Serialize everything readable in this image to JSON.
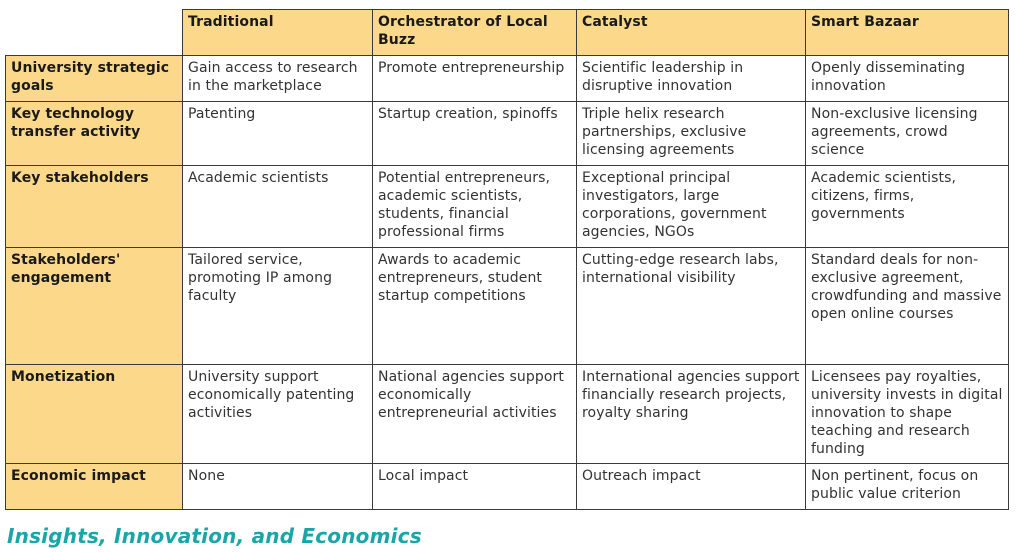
{
  "table": {
    "columns": [
      "Traditional",
      "Orchestrator of Local Buzz",
      "Catalyst",
      "Smart Bazaar"
    ],
    "rows": [
      {
        "label": "University strategic goals",
        "cells": [
          "Gain access to research in the marketplace",
          "Promote entrepreneurship",
          "Scientific leadership in disruptive innovation",
          "Openly disseminating innovation"
        ]
      },
      {
        "label": "Key technology transfer activity",
        "cells": [
          "Patenting",
          "Startup creation, spinoffs",
          "Triple helix research partnerships, exclusive licensing agreements",
          "Non-exclusive licensing agreements, crowd science"
        ]
      },
      {
        "label": "Key stakeholders",
        "cells": [
          "Academic scientists",
          "Potential entrepreneurs, academic scientists, students, financial professional firms",
          "Exceptional principal investigators, large corporations, government agencies, NGOs",
          "Academic scientists, citizens, firms, governments"
        ]
      },
      {
        "label": "Stakeholders' engagement",
        "cells": [
          "Tailored service, promoting IP among faculty",
          "Awards to academic entrepreneurs, student startup competitions",
          "Cutting-edge research labs, international visibility",
          "Standard deals for non-exclusive agreement, crowdfunding and massive open online courses"
        ]
      },
      {
        "label": "Monetization",
        "cells": [
          "University support economically patenting activities",
          "National agencies support economically entrepreneurial activities",
          "International agencies support financially research projects, royalty sharing",
          "Licensees pay royalties, university invests in digital innovation to shape teaching and research funding"
        ]
      },
      {
        "label": "Economic impact",
        "cells": [
          "None",
          "Local impact",
          "Outreach impact",
          "Non pertinent, focus on public value criterion"
        ]
      }
    ]
  },
  "footer": {
    "text": "Insights, Innovation, and Economics"
  },
  "colors": {
    "header_fill": "#fcd98a",
    "footer_text": "#1aa6a6",
    "border": "#3a3a3a"
  }
}
